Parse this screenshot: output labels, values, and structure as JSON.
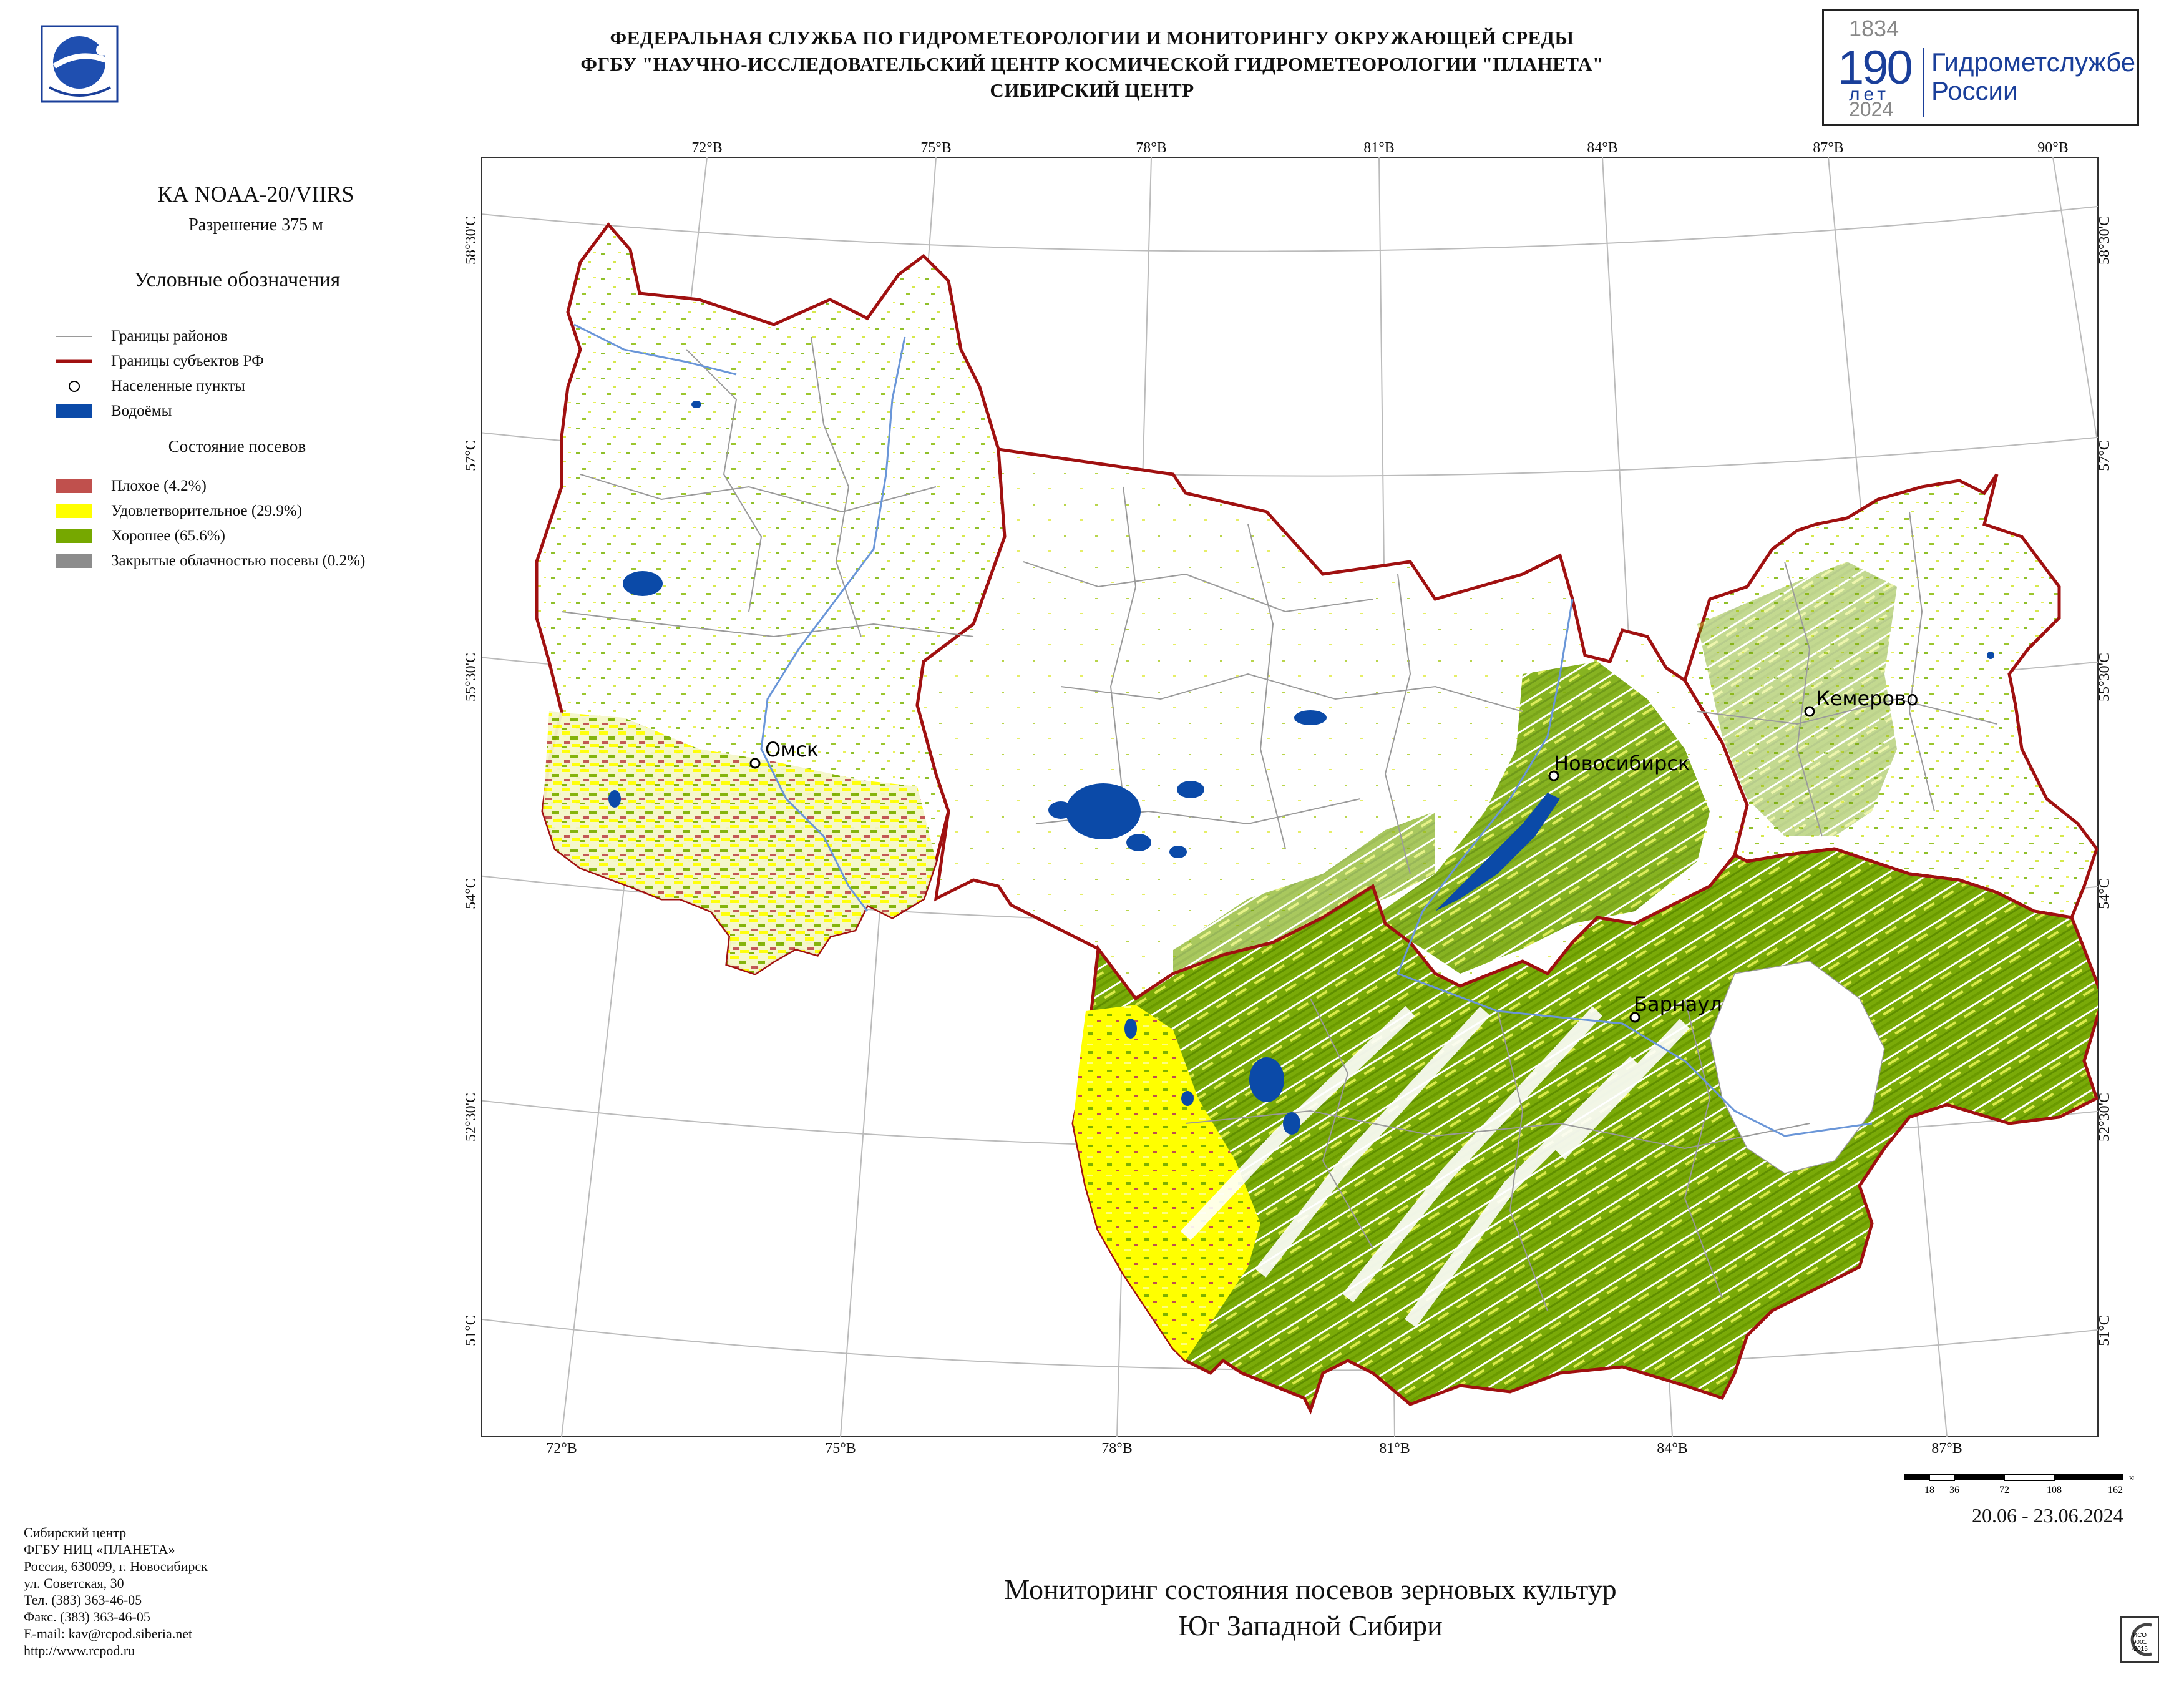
{
  "header": {
    "line1": "ФЕДЕРАЛЬНАЯ СЛУЖБА ПО ГИДРОМЕТЕОРОЛОГИИ И МОНИТОРИНГУ ОКРУЖАЮЩЕЙ СРЕДЫ",
    "line2": "ФГБУ \"НАУЧНО-ИССЛЕДОВАТЕЛЬСКИЙ ЦЕНТР КОСМИЧЕСКОЙ ГИДРОМЕТЕОРОЛОГИИ \"ПЛАНЕТА\"",
    "line3": "СИБИРСКИЙ ЦЕНТР"
  },
  "anniversary": {
    "year_start": "1834",
    "number": "190",
    "unit": "лет",
    "year_end": "2024",
    "org_line1": "Гидрометслужбе",
    "org_line2": "России",
    "color": "#1a3f9a"
  },
  "satellite": "КА NOAA-20/VIIRS",
  "resolution": "Разрешение 375 м",
  "legend": {
    "title": "Условные обозначения",
    "items": [
      {
        "label": "Границы районов",
        "icon": "grey-line",
        "color": "#9a9a9a"
      },
      {
        "label": "Границы субъектов РФ",
        "icon": "red-line",
        "color": "#a01010"
      },
      {
        "label": "Населенные пункты",
        "icon": "circle",
        "color": "#000000"
      },
      {
        "label": "Водоёмы",
        "icon": "blue-fill",
        "color": "#0b4aa8"
      }
    ],
    "crops_title": "Состояние посевов",
    "crops": [
      {
        "label": "Плохое (4.2%)",
        "color": "#c0504d"
      },
      {
        "label": "Удовлетворительное (29.9%)",
        "color": "#ffff00"
      },
      {
        "label": "Хорошее (65.6%)",
        "color": "#76a800"
      },
      {
        "label": "Закрытые облачностью посевы (0.2%)",
        "color": "#8c8c8c"
      }
    ]
  },
  "map": {
    "lon_top": [
      "72°В",
      "75°В",
      "78°В",
      "81°В",
      "84°В",
      "87°В",
      "90°В"
    ],
    "lon_bottom": [
      "72°В",
      "75°В",
      "78°В",
      "81°В",
      "84°В",
      "87°В"
    ],
    "lat_left": [
      "58°30'С",
      "57°С",
      "55°30'С",
      "54°С",
      "52°30'С",
      "51°С"
    ],
    "lat_right": [
      "58°30'С",
      "57°С",
      "55°30'С",
      "54°С",
      "52°30'С",
      "51°С"
    ],
    "cities": [
      "Омск",
      "Новосибирск",
      "Кемерово",
      "Барнаул"
    ]
  },
  "scale": {
    "ticks": [
      "18",
      "36",
      "72",
      "108",
      "162"
    ],
    "unit": "км"
  },
  "date": "20.06 - 23.06.2024",
  "footer": [
    "Сибирский центр",
    "ФГБУ НИЦ «ПЛАНЕТА»",
    "Россия, 630099, г. Новосибирск",
    "ул. Советская, 30",
    "Тел. (383) 363-46-05",
    "Факс. (383) 363-46-05",
    "E-mail: kav@rcpod.siberia.net",
    "http://www.rcpod.ru"
  ],
  "title": {
    "line1": "Мониторинг состояния посевов зерновых культур",
    "line2": "Юг Западной Сибири"
  },
  "cert": {
    "line1": "ИСО",
    "line2": "9001",
    "line3": "-2015"
  }
}
